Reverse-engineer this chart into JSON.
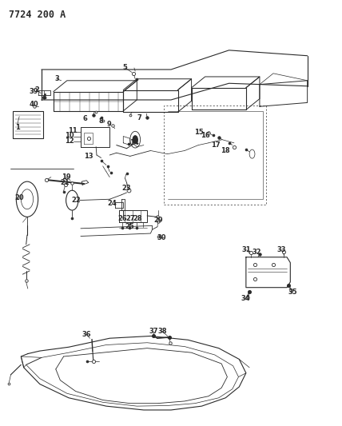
{
  "title": "7724 200 A",
  "bg_color": "#ffffff",
  "line_color": "#2a2a2a",
  "title_fontsize": 8.5,
  "label_fontsize": 6.0,
  "figsize": [
    4.28,
    5.33
  ],
  "dpi": 100
}
